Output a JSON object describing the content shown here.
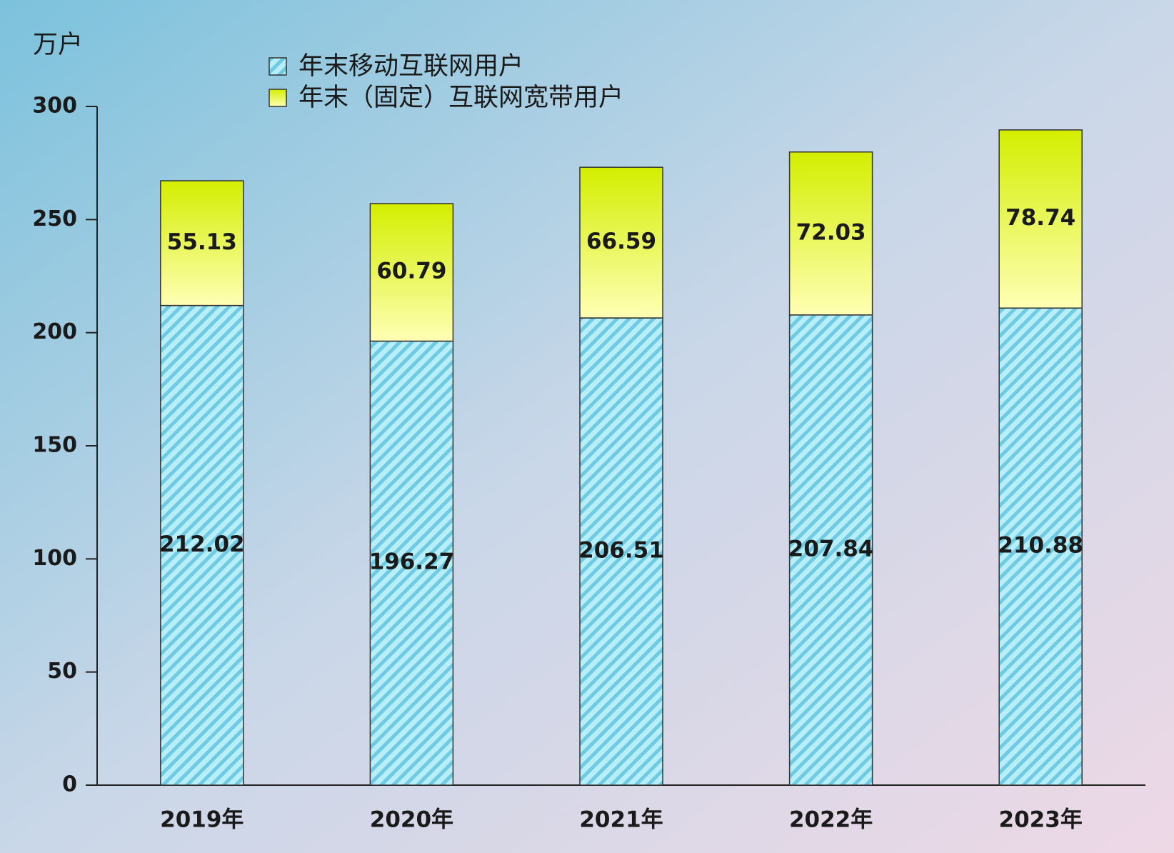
{
  "chart_data": {
    "type": "stacked-bar",
    "y_axis_label": "万户",
    "categories": [
      "2019年",
      "2020年",
      "2021年",
      "2022年",
      "2023年"
    ],
    "series": [
      {
        "name": "年末移动互联网用户",
        "color": "#b8eef8",
        "values": [
          212.02,
          196.27,
          206.51,
          207.84,
          210.88
        ]
      },
      {
        "name": "年末（固定）互联网宽带用户",
        "color": "#d4ee00",
        "values": [
          55.13,
          60.79,
          66.59,
          72.03,
          78.74
        ]
      }
    ],
    "ylim": [
      0,
      300
    ],
    "yticks": [
      0,
      50,
      100,
      150,
      200,
      250,
      300
    ],
    "grid": false
  }
}
